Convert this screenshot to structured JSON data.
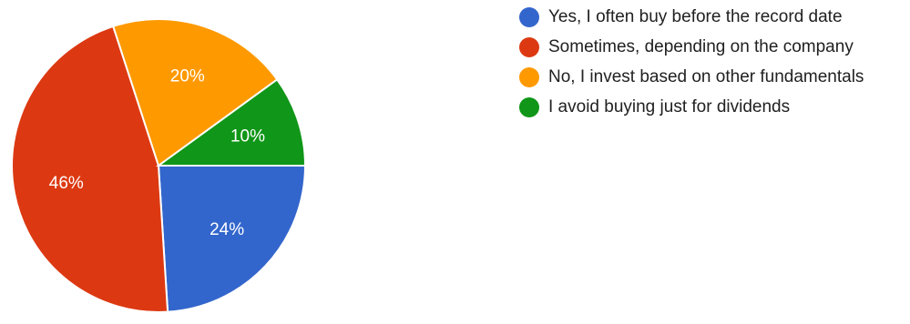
{
  "chart_data": {
    "type": "pie",
    "slices": [
      {
        "label": "Yes, I often buy before the record date",
        "value": 24,
        "display": "24%",
        "color": "#3366CC"
      },
      {
        "label": "Sometimes, depending on the company",
        "value": 46,
        "display": "46%",
        "color": "#DC3912"
      },
      {
        "label": "No, I invest based on other fundamentals",
        "value": 20,
        "display": "20%",
        "color": "#FF9900"
      },
      {
        "label": "I avoid buying just for dividends",
        "value": 10,
        "display": "10%",
        "color": "#109618"
      }
    ],
    "legend_position": "right",
    "start_direction": "east, clockwise"
  }
}
